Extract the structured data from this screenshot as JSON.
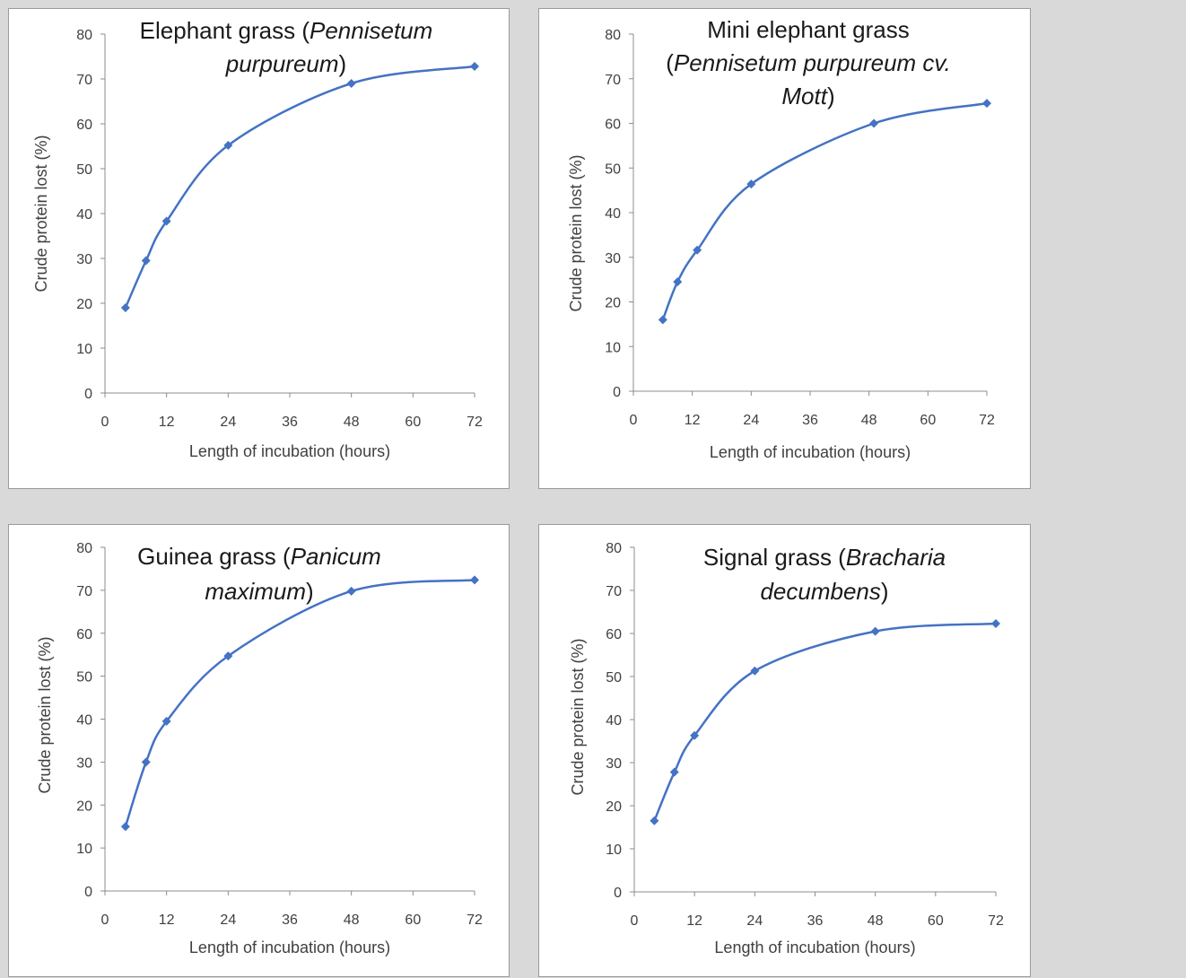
{
  "line_color": "#4472c4",
  "chart_data": [
    {
      "id": "elephant",
      "type": "line",
      "title_lines": [
        [
          {
            "t": "Elephant grass (",
            "i": false
          },
          {
            "t": "Pennisetum",
            "i": true
          }
        ],
        [
          {
            "t": "purpureum",
            "i": true
          },
          {
            "t": ")",
            "i": false
          }
        ]
      ],
      "xlabel": "Length of incubation (hours)",
      "ylabel": "Crude protein lost (%)",
      "xlim": [
        0,
        72
      ],
      "ylim": [
        0,
        80
      ],
      "xticks": [
        0,
        12,
        24,
        36,
        48,
        60,
        72
      ],
      "yticks": [
        0,
        10,
        20,
        30,
        40,
        50,
        60,
        70,
        80
      ],
      "grid": false,
      "x": [
        4,
        8,
        12,
        24,
        48,
        72
      ],
      "y": [
        19,
        29.5,
        38.3,
        55.2,
        69,
        72.8
      ]
    },
    {
      "id": "mini",
      "type": "line",
      "title_lines": [
        [
          {
            "t": "Mini elephant grass",
            "i": false
          }
        ],
        [
          {
            "t": "(",
            "i": false
          },
          {
            "t": "Pennisetum purpureum cv.",
            "i": true
          }
        ],
        [
          {
            "t": "Mott",
            "i": true
          },
          {
            "t": ")",
            "i": false
          }
        ]
      ],
      "xlabel": "Length of incubation (hours)",
      "ylabel": "Crude protein lost (%)",
      "xlim": [
        0,
        72
      ],
      "ylim": [
        0,
        80
      ],
      "xticks": [
        0,
        12,
        24,
        36,
        48,
        60,
        72
      ],
      "yticks": [
        0,
        10,
        20,
        30,
        40,
        50,
        60,
        70,
        80
      ],
      "grid": false,
      "x": [
        6,
        9,
        13,
        24,
        49,
        72
      ],
      "y": [
        16,
        24.5,
        31.6,
        46.4,
        60,
        64.5
      ]
    },
    {
      "id": "guinea",
      "type": "line",
      "title_lines": [
        [
          {
            "t": "Guinea grass (",
            "i": false
          },
          {
            "t": "Panicum",
            "i": true
          }
        ],
        [
          {
            "t": "maximum",
            "i": true
          },
          {
            "t": ")",
            "i": false
          }
        ]
      ],
      "xlabel": "Length of incubation (hours)",
      "ylabel": "Crude protein lost (%)",
      "xlim": [
        0,
        72
      ],
      "ylim": [
        0,
        80
      ],
      "xticks": [
        0,
        12,
        24,
        36,
        48,
        60,
        72
      ],
      "yticks": [
        0,
        10,
        20,
        30,
        40,
        50,
        60,
        70,
        80
      ],
      "grid": false,
      "x": [
        4,
        8,
        12,
        24,
        48,
        72
      ],
      "y": [
        15,
        30,
        39.5,
        54.7,
        69.8,
        72.4
      ]
    },
    {
      "id": "signal",
      "type": "line",
      "title_lines": [
        [
          {
            "t": "Signal grass (",
            "i": false
          },
          {
            "t": "Bracharia",
            "i": true
          }
        ],
        [
          {
            "t": "decumbens",
            "i": true
          },
          {
            "t": ")",
            "i": false
          }
        ]
      ],
      "xlabel": "Length of incubation (hours)",
      "ylabel": "Crude protein lost (%)",
      "xlim": [
        0,
        72
      ],
      "ylim": [
        0,
        80
      ],
      "xticks": [
        0,
        12,
        24,
        36,
        48,
        60,
        72
      ],
      "yticks": [
        0,
        10,
        20,
        30,
        40,
        50,
        60,
        70,
        80
      ],
      "grid": false,
      "x": [
        4,
        8,
        12,
        24,
        48,
        72
      ],
      "y": [
        16.5,
        27.8,
        36.3,
        51.3,
        60.5,
        62.3
      ]
    }
  ]
}
